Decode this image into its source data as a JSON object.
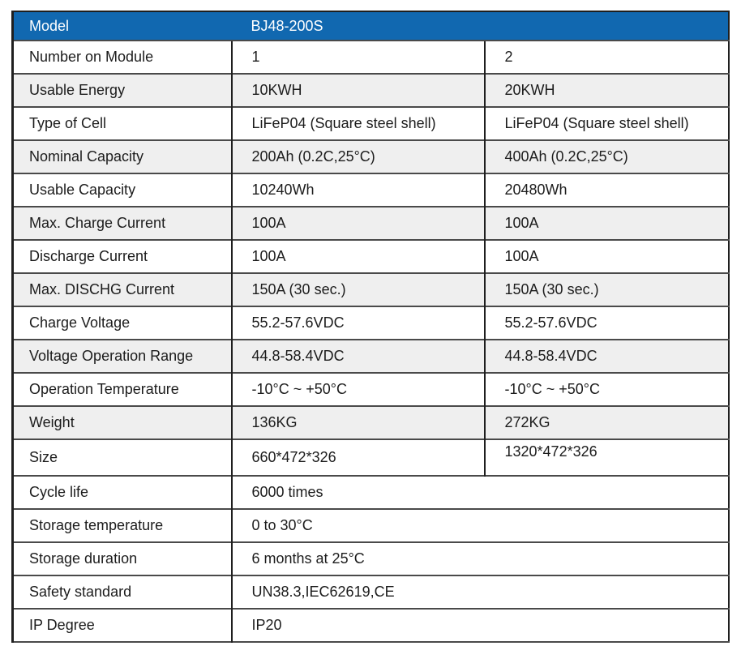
{
  "table": {
    "header": {
      "label": "Model",
      "value": "BJ48-200S"
    },
    "rows": [
      {
        "label": "Number on Module",
        "values": [
          "1",
          "2"
        ]
      },
      {
        "label": "Usable Energy",
        "values": [
          "10KWH",
          "20KWH"
        ]
      },
      {
        "label": "Type of Cell",
        "values": [
          "LiFeP04 (Square steel shell)",
          "LiFeP04 (Square steel shell)"
        ]
      },
      {
        "label": "Nominal Capacity",
        "values": [
          "200Ah (0.2C,25°C)",
          "400Ah (0.2C,25°C)"
        ]
      },
      {
        "label": "Usable Capacity",
        "values": [
          "10240Wh",
          "20480Wh"
        ]
      },
      {
        "label": "Max. Charge Current",
        "values": [
          "100A",
          "100A"
        ]
      },
      {
        "label": "Discharge Current",
        "values": [
          "100A",
          "100A"
        ]
      },
      {
        "label": "Max. DISCHG Current",
        "values": [
          "150A (30 sec.)",
          "150A (30 sec.)"
        ]
      },
      {
        "label": "Charge Voltage",
        "values": [
          "55.2-57.6VDC",
          "55.2-57.6VDC"
        ]
      },
      {
        "label": "Voltage Operation Range",
        "values": [
          "44.8-58.4VDC",
          "44.8-58.4VDC"
        ]
      },
      {
        "label": "Operation Temperature",
        "values": [
          "-10°C ~ +50°C",
          "-10°C ~ +50°C"
        ]
      },
      {
        "label": "Weight",
        "values": [
          "136KG",
          "272KG"
        ]
      },
      {
        "label": "Size",
        "values": [
          "660*472*326",
          "1320*472*326"
        ]
      }
    ],
    "spanned_rows": [
      {
        "label": "Cycle life",
        "value": "6000 times"
      },
      {
        "label": "Storage temperature",
        "value": "0 to 30°C"
      },
      {
        "label": "Storage duration",
        "value": "6 months at 25°C"
      },
      {
        "label": "Safety standard",
        "value": "UN38.3,IEC62619,CE"
      },
      {
        "label": "IP Degree",
        "value": "IP20"
      }
    ]
  },
  "colors": {
    "header_bg": "#1168b0",
    "header_text": "#ffffff",
    "alt_row_bg": "#efefef",
    "border_dark": "#1f1f1f",
    "border_gray": "#4a4a4a",
    "text": "#1c1c1c"
  }
}
